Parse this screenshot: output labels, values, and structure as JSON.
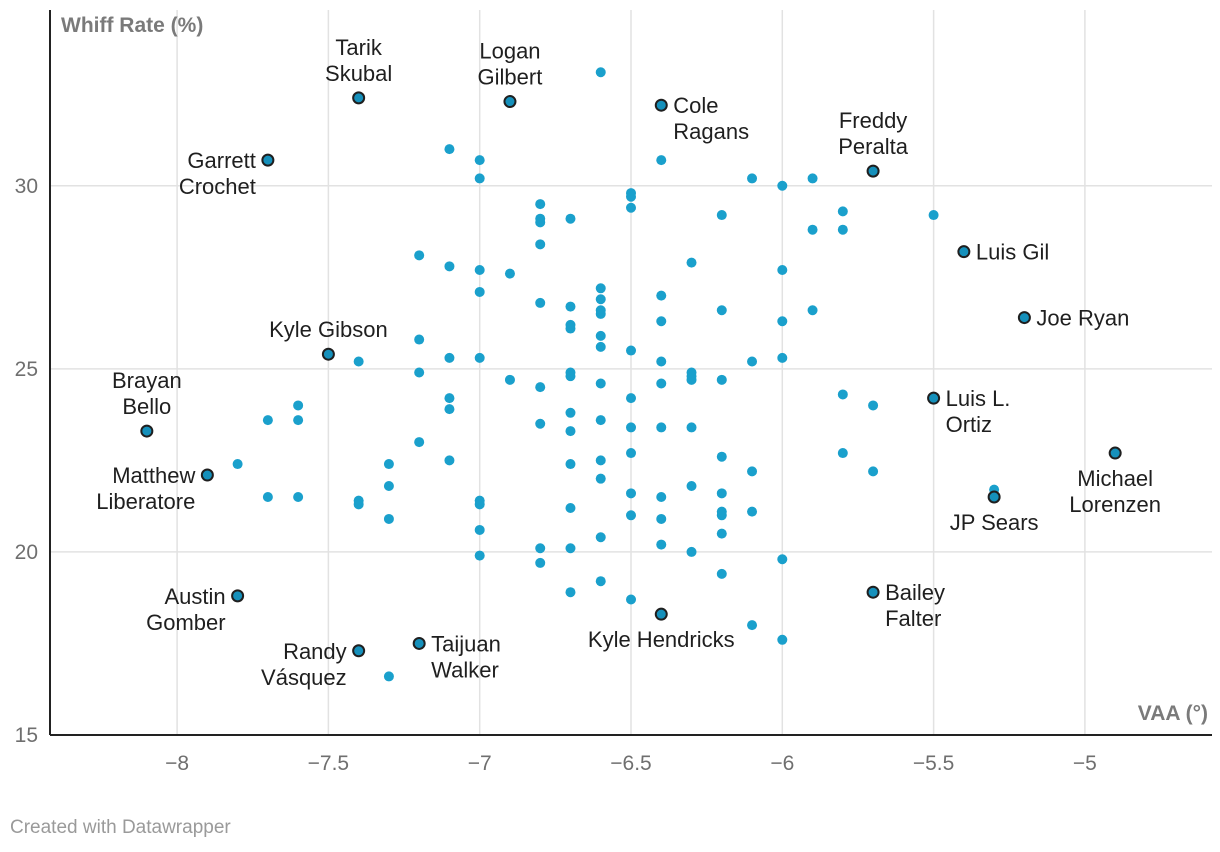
{
  "chart_data": {
    "type": "scatter",
    "title": "",
    "xlabel": "VAA (°)",
    "ylabel": "Whiff Rate (%)",
    "xlim": [
      -8.42,
      -4.58
    ],
    "ylim": [
      15,
      34.8
    ],
    "x_ticks": [
      -8,
      -7.5,
      -7,
      -6.5,
      -6,
      -5.5,
      -5
    ],
    "x_tick_labels": [
      "−8",
      "−7.5",
      "−7",
      "−6.5",
      "−6",
      "−5.5",
      "−5"
    ],
    "y_ticks": [
      15,
      20,
      25,
      30
    ],
    "y_tick_labels": [
      "15",
      "20",
      "25",
      "30"
    ],
    "grid": true,
    "colors": {
      "point": "#1aa0cc",
      "highlight": "#1590bb",
      "highlight_stroke": "#1f1f1f",
      "grid": "#e2e2e2",
      "axis": "#222222"
    },
    "highlighted": [
      {
        "name": "Tarik Skubal",
        "lines": [
          "Tarik",
          "Skubal"
        ],
        "x": -7.4,
        "y": 32.4,
        "pos": "above"
      },
      {
        "name": "Logan Gilbert",
        "lines": [
          "Logan",
          "Gilbert"
        ],
        "x": -6.9,
        "y": 32.3,
        "pos": "above"
      },
      {
        "name": "Cole Ragans",
        "lines": [
          "Cole",
          "Ragans"
        ],
        "x": -6.4,
        "y": 32.2,
        "pos": "right"
      },
      {
        "name": "Garrett Crochet",
        "lines": [
          "Garrett",
          "Crochet"
        ],
        "x": -7.7,
        "y": 30.7,
        "pos": "left"
      },
      {
        "name": "Freddy Peralta",
        "lines": [
          "Freddy",
          "Peralta"
        ],
        "x": -5.7,
        "y": 30.4,
        "pos": "above"
      },
      {
        "name": "Luis Gil",
        "lines": [
          "Luis Gil"
        ],
        "x": -5.4,
        "y": 28.2,
        "pos": "right"
      },
      {
        "name": "Joe Ryan",
        "lines": [
          "Joe Ryan"
        ],
        "x": -5.2,
        "y": 26.4,
        "pos": "right"
      },
      {
        "name": "Kyle Gibson",
        "lines": [
          "Kyle Gibson"
        ],
        "x": -7.5,
        "y": 25.4,
        "pos": "above"
      },
      {
        "name": "Luis L. Ortiz",
        "lines": [
          "Luis L.",
          "Ortiz"
        ],
        "x": -5.5,
        "y": 24.2,
        "pos": "right"
      },
      {
        "name": "Brayan Bello",
        "lines": [
          "Brayan",
          "Bello"
        ],
        "x": -8.1,
        "y": 23.3,
        "pos": "above"
      },
      {
        "name": "Michael Lorenzen",
        "lines": [
          "Michael",
          "Lorenzen"
        ],
        "x": -4.9,
        "y": 22.7,
        "pos": "below"
      },
      {
        "name": "Matthew Liberatore",
        "lines": [
          "Matthew",
          "Liberatore"
        ],
        "x": -7.9,
        "y": 22.1,
        "pos": "left"
      },
      {
        "name": "JP Sears",
        "lines": [
          "JP Sears"
        ],
        "x": -5.3,
        "y": 21.5,
        "pos": "below"
      },
      {
        "name": "Bailey Falter",
        "lines": [
          "Bailey",
          "Falter"
        ],
        "x": -5.7,
        "y": 18.9,
        "pos": "right"
      },
      {
        "name": "Austin Gomber",
        "lines": [
          "Austin",
          "Gomber"
        ],
        "x": -7.8,
        "y": 18.8,
        "pos": "left"
      },
      {
        "name": "Kyle Hendricks",
        "lines": [
          "Kyle Hendricks"
        ],
        "x": -6.4,
        "y": 18.3,
        "pos": "below"
      },
      {
        "name": "Taijuan Walker",
        "lines": [
          "Taijuan",
          "Walker"
        ],
        "x": -7.2,
        "y": 17.5,
        "pos": "right"
      },
      {
        "name": "Randy Vásquez",
        "lines": [
          "Randy",
          "Vásquez"
        ],
        "x": -7.4,
        "y": 17.3,
        "pos": "left"
      }
    ],
    "points": [
      [
        -6.6,
        33.1
      ],
      [
        -7.1,
        31.0
      ],
      [
        -7.0,
        30.7
      ],
      [
        -6.4,
        30.7
      ],
      [
        -7.0,
        30.2
      ],
      [
        -6.1,
        30.2
      ],
      [
        -6.0,
        30.0
      ],
      [
        -5.9,
        30.2
      ],
      [
        -6.5,
        29.8
      ],
      [
        -6.5,
        29.7
      ],
      [
        -6.8,
        29.5
      ],
      [
        -6.5,
        29.4
      ],
      [
        -6.8,
        29.1
      ],
      [
        -6.8,
        29.0
      ],
      [
        -6.7,
        29.1
      ],
      [
        -6.2,
        29.2
      ],
      [
        -5.8,
        29.3
      ],
      [
        -5.5,
        29.2
      ],
      [
        -5.9,
        28.8
      ],
      [
        -5.8,
        28.8
      ],
      [
        -6.8,
        28.4
      ],
      [
        -7.2,
        28.1
      ],
      [
        -7.1,
        27.8
      ],
      [
        -7.0,
        27.7
      ],
      [
        -6.9,
        27.6
      ],
      [
        -6.3,
        27.9
      ],
      [
        -6.0,
        27.7
      ],
      [
        -6.6,
        27.2
      ],
      [
        -7.0,
        27.1
      ],
      [
        -6.4,
        27.0
      ],
      [
        -6.6,
        26.9
      ],
      [
        -6.8,
        26.8
      ],
      [
        -6.7,
        26.7
      ],
      [
        -6.6,
        26.6
      ],
      [
        -6.6,
        26.5
      ],
      [
        -6.2,
        26.6
      ],
      [
        -5.9,
        26.6
      ],
      [
        -6.7,
        26.2
      ],
      [
        -6.7,
        26.1
      ],
      [
        -6.4,
        26.3
      ],
      [
        -6.0,
        26.3
      ],
      [
        -6.6,
        25.9
      ],
      [
        -7.2,
        25.8
      ],
      [
        -6.6,
        25.6
      ],
      [
        -6.5,
        25.5
      ],
      [
        -7.1,
        25.3
      ],
      [
        -7.0,
        25.3
      ],
      [
        -7.4,
        25.2
      ],
      [
        -6.4,
        25.2
      ],
      [
        -6.1,
        25.2
      ],
      [
        -6.0,
        25.3
      ],
      [
        -7.2,
        24.9
      ],
      [
        -6.7,
        24.9
      ],
      [
        -6.7,
        24.8
      ],
      [
        -6.3,
        24.9
      ],
      [
        -6.3,
        24.8
      ],
      [
        -6.3,
        24.7
      ],
      [
        -6.9,
        24.7
      ],
      [
        -6.2,
        24.7
      ],
      [
        -6.8,
        24.5
      ],
      [
        -6.6,
        24.6
      ],
      [
        -6.4,
        24.6
      ],
      [
        -7.1,
        24.2
      ],
      [
        -6.5,
        24.2
      ],
      [
        -5.8,
        24.3
      ],
      [
        -5.7,
        24.0
      ],
      [
        -7.6,
        24.0
      ],
      [
        -7.1,
        23.9
      ],
      [
        -6.7,
        23.8
      ],
      [
        -7.7,
        23.6
      ],
      [
        -7.6,
        23.6
      ],
      [
        -6.6,
        23.6
      ],
      [
        -6.8,
        23.5
      ],
      [
        -6.7,
        23.3
      ],
      [
        -6.5,
        23.4
      ],
      [
        -6.4,
        23.4
      ],
      [
        -6.3,
        23.4
      ],
      [
        -7.2,
        23.0
      ],
      [
        -6.5,
        22.7
      ],
      [
        -5.8,
        22.7
      ],
      [
        -7.1,
        22.5
      ],
      [
        -6.6,
        22.5
      ],
      [
        -6.2,
        22.6
      ],
      [
        -7.8,
        22.4
      ],
      [
        -7.3,
        22.4
      ],
      [
        -6.7,
        22.4
      ],
      [
        -6.1,
        22.2
      ],
      [
        -5.7,
        22.2
      ],
      [
        -6.6,
        22.0
      ],
      [
        -7.3,
        21.8
      ],
      [
        -6.3,
        21.8
      ],
      [
        -5.3,
        21.7
      ],
      [
        -7.7,
        21.5
      ],
      [
        -7.6,
        21.5
      ],
      [
        -6.5,
        21.6
      ],
      [
        -6.4,
        21.5
      ],
      [
        -6.2,
        21.6
      ],
      [
        -7.4,
        21.4
      ],
      [
        -7.4,
        21.3
      ],
      [
        -7.0,
        21.4
      ],
      [
        -7.0,
        21.3
      ],
      [
        -6.7,
        21.2
      ],
      [
        -6.2,
        21.1
      ],
      [
        -6.2,
        21.0
      ],
      [
        -6.1,
        21.1
      ],
      [
        -7.3,
        20.9
      ],
      [
        -6.5,
        21.0
      ],
      [
        -6.4,
        20.9
      ],
      [
        -7.0,
        20.6
      ],
      [
        -6.2,
        20.5
      ],
      [
        -6.6,
        20.4
      ],
      [
        -6.4,
        20.2
      ],
      [
        -6.8,
        20.1
      ],
      [
        -6.7,
        20.1
      ],
      [
        -6.3,
        20.0
      ],
      [
        -7.0,
        19.9
      ],
      [
        -6.0,
        19.8
      ],
      [
        -6.8,
        19.7
      ],
      [
        -6.2,
        19.4
      ],
      [
        -6.6,
        19.2
      ],
      [
        -6.7,
        18.9
      ],
      [
        -6.5,
        18.7
      ],
      [
        -6.1,
        18.0
      ],
      [
        -6.0,
        17.6
      ],
      [
        -7.3,
        16.6
      ]
    ]
  },
  "footer": {
    "credit": "Created with Datawrapper"
  }
}
